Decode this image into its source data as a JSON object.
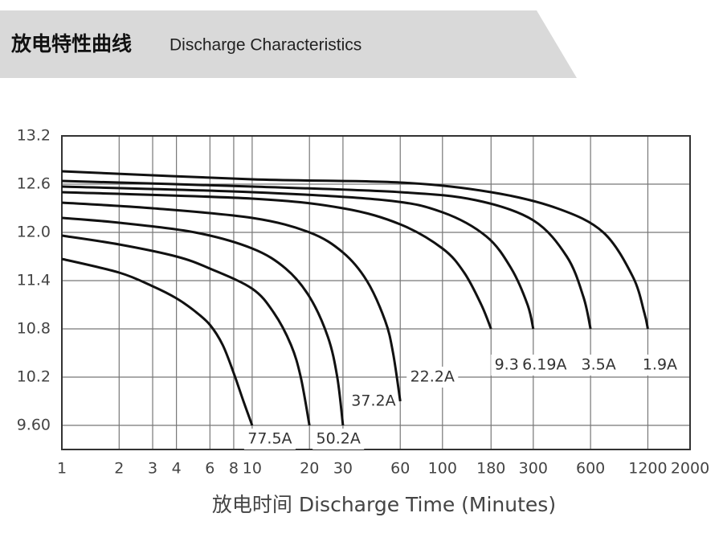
{
  "header": {
    "title_cn": "放电特性曲线",
    "title_en": "Discharge Characteristics"
  },
  "chart_data": {
    "type": "line",
    "x_label": "放电时间 Discharge Time (Minutes)",
    "xscale": "log",
    "xlim": [
      1,
      2000
    ],
    "ylim": [
      9.3,
      13.2
    ],
    "xticks": [
      1,
      2,
      3,
      4,
      6,
      8,
      10,
      20,
      30,
      60,
      100,
      180,
      300,
      600,
      1200,
      2000
    ],
    "yticks": [
      13.2,
      12.6,
      {
        "value": 12,
        "label": "12.0"
      },
      11.4,
      10.8,
      10.2,
      {
        "value": 9.6,
        "label": "9.60"
      }
    ],
    "grid": true,
    "series": [
      {
        "name": "77.5A",
        "color": "#111111",
        "x": [
          1,
          2,
          3,
          4,
          5,
          6,
          7,
          8,
          9,
          10
        ],
        "values": [
          11.67,
          11.5,
          11.33,
          11.18,
          11.02,
          10.85,
          10.6,
          10.25,
          9.9,
          9.6
        ]
      },
      {
        "name": "50.2A",
        "color": "#111111",
        "x": [
          1,
          2,
          4,
          6,
          10,
          13,
          16,
          18,
          20
        ],
        "values": [
          11.96,
          11.85,
          11.7,
          11.55,
          11.3,
          11.0,
          10.6,
          10.2,
          9.6
        ]
      },
      {
        "name": "37.2A",
        "color": "#111111",
        "x": [
          1,
          2,
          5,
          10,
          15,
          20,
          25,
          28,
          30
        ],
        "values": [
          12.18,
          12.12,
          12.0,
          11.8,
          11.55,
          11.2,
          10.7,
          10.2,
          9.6
        ]
      },
      {
        "name": "22.2A",
        "color": "#111111",
        "x": [
          1,
          3,
          10,
          20,
          30,
          40,
          50,
          55,
          60
        ],
        "values": [
          12.37,
          12.3,
          12.18,
          12.0,
          11.75,
          11.4,
          10.9,
          10.5,
          9.9
        ]
      },
      {
        "name": "9.31A",
        "color": "#111111",
        "x": [
          1,
          10,
          30,
          60,
          100,
          130,
          160,
          180
        ],
        "values": [
          12.5,
          12.42,
          12.3,
          12.1,
          11.8,
          11.5,
          11.1,
          10.8
        ]
      },
      {
        "name": "6.19A",
        "color": "#111111",
        "x": [
          1,
          10,
          50,
          100,
          170,
          230,
          280,
          300
        ],
        "values": [
          12.57,
          12.5,
          12.4,
          12.25,
          11.95,
          11.55,
          11.1,
          10.8
        ]
      },
      {
        "name": "3.5A",
        "color": "#111111",
        "x": [
          1,
          10,
          60,
          150,
          300,
          450,
          550,
          600
        ],
        "values": [
          12.64,
          12.57,
          12.5,
          12.4,
          12.15,
          11.7,
          11.2,
          10.8
        ]
      },
      {
        "name": "1.9A",
        "color": "#111111",
        "x": [
          1,
          10,
          60,
          180,
          400,
          700,
          1000,
          1150,
          1200
        ],
        "values": [
          12.76,
          12.66,
          12.62,
          12.5,
          12.3,
          12.0,
          11.45,
          11.0,
          10.8
        ]
      }
    ]
  }
}
